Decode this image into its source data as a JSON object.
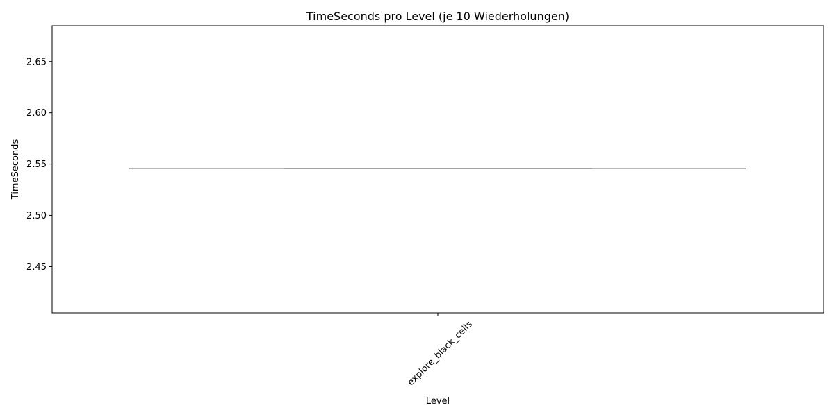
{
  "chart_data": {
    "type": "box",
    "title": "TimeSeconds pro Level (je 10 Wiederholungen)",
    "xlabel": "Level",
    "ylabel": "TimeSeconds",
    "categories": [
      "explore_black_cells"
    ],
    "series": [
      {
        "category": "explore_black_cells",
        "n": 10,
        "min": 2.5455,
        "q1": 2.5455,
        "median": 2.5455,
        "q3": 2.5455,
        "max": 2.5455
      }
    ],
    "ylim": [
      2.405,
      2.685
    ],
    "yticks": [
      2.45,
      2.5,
      2.55,
      2.6,
      2.65
    ],
    "ytick_labels": [
      "2.45",
      "2.50",
      "2.55",
      "2.60",
      "2.65"
    ],
    "grid": false,
    "legend": "none",
    "colors": {
      "box_line": "#3f3f3f",
      "axes": "#000000",
      "background": "#ffffff"
    }
  }
}
